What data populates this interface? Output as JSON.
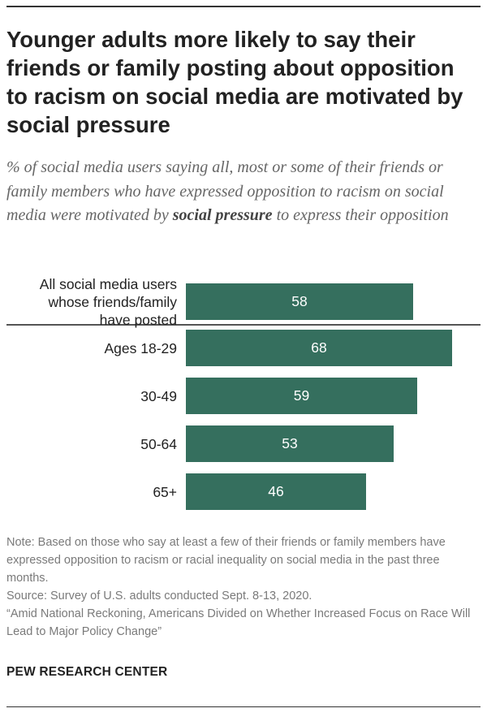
{
  "title": "Younger adults more likely to say their friends or family posting about opposition to racism on social media are motivated by social pressure",
  "subtitle": {
    "before": "% of social media users saying all, most or some of their friends or family members who have expressed opposition to racism on social media were motivated by ",
    "emphasis": "social pressure",
    "after": " to express their opposition"
  },
  "chart_data": {
    "type": "bar",
    "orientation": "horizontal",
    "categories": [
      "All social media users whose friends/family have posted",
      "Ages 18-29",
      "30-49",
      "50-64",
      "65+"
    ],
    "category_lines": [
      [
        "All social media users",
        "whose friends/family",
        "have posted"
      ],
      [
        "Ages 18-29"
      ],
      [
        "30-49"
      ],
      [
        "50-64"
      ],
      [
        "65+"
      ]
    ],
    "values": [
      58,
      68,
      59,
      53,
      46
    ],
    "value_labels": [
      "58",
      "68",
      "59",
      "53",
      "46"
    ],
    "xlim": [
      0,
      68
    ],
    "bar_color": "#356f5e",
    "grid": false,
    "legend": "none"
  },
  "note": {
    "line1": "Note: Based on those who say at least a few of their friends or family members have expressed opposition to racism or racial inequality on social media in the past three months.",
    "line2": "Source: Survey of U.S. adults conducted Sept. 8-13, 2020.",
    "line3": "“Amid National Reckoning, Americans Divided on Whether Increased Focus on Race Will Lead to Major Policy Change”"
  },
  "brand": "PEW RESEARCH CENTER"
}
